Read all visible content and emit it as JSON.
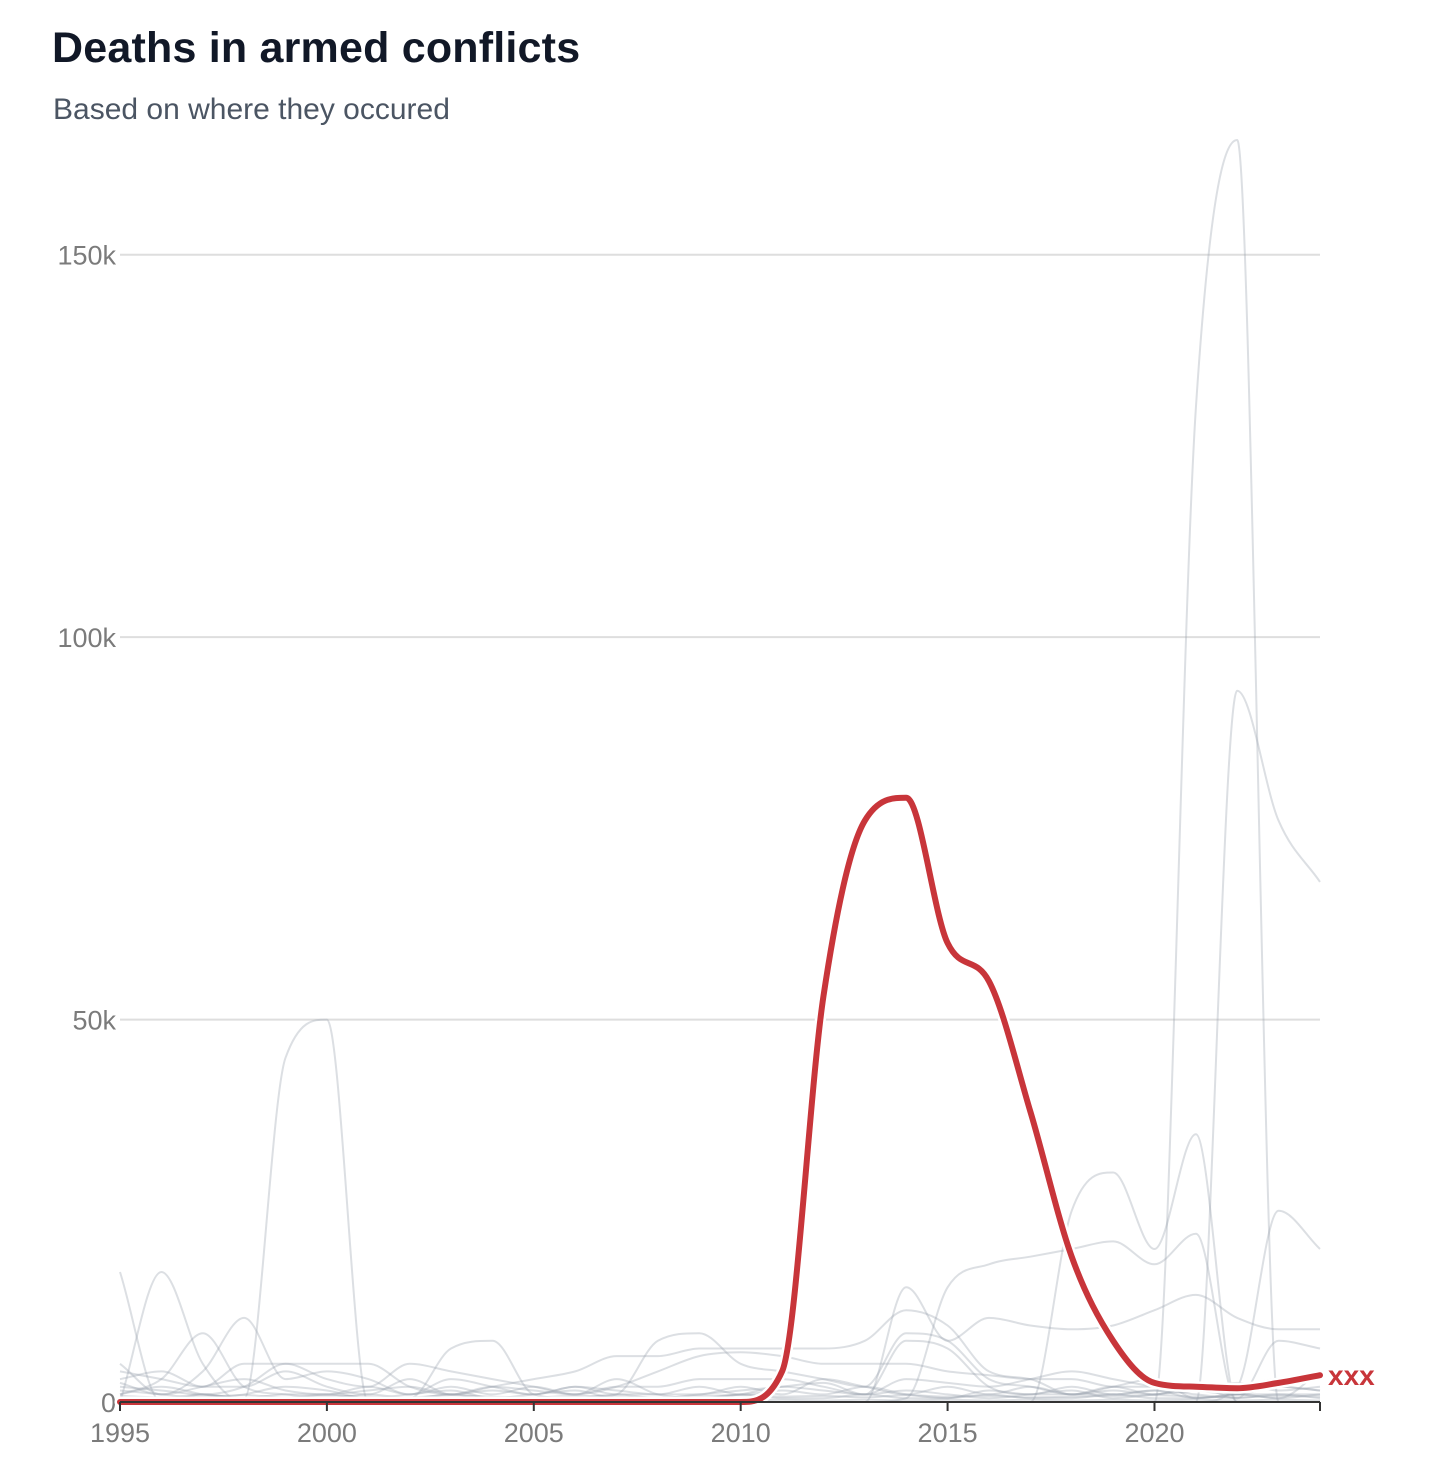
{
  "header": {
    "title": "Deaths in armed conflicts",
    "subtitle": "Based on where they occured"
  },
  "colors": {
    "highlight": "#c8353a",
    "background_series": "#9ca3af",
    "grid": "#dedede",
    "axis": "#333333"
  },
  "chart_data": {
    "type": "line",
    "title": "Deaths in armed conflicts",
    "subtitle": "Based on where they occured",
    "xlabel": "",
    "ylabel": "",
    "xlim": [
      1995,
      2024
    ],
    "ylim": [
      0,
      165000
    ],
    "x_ticks": [
      1995,
      2000,
      2005,
      2010,
      2015,
      2020
    ],
    "x_tick_labels": [
      "1995",
      "2000",
      "2005",
      "2010",
      "2015",
      "2020"
    ],
    "y_ticks": [
      0,
      50000,
      100000,
      150000
    ],
    "y_tick_labels": [
      "0",
      "50k",
      "100k",
      "150k"
    ],
    "grid": "horizontal",
    "highlight_label": "xxx",
    "x": [
      1995,
      1996,
      1997,
      1998,
      1999,
      2000,
      2001,
      2002,
      2003,
      2004,
      2005,
      2006,
      2007,
      2008,
      2009,
      2010,
      2011,
      2012,
      2013,
      2014,
      2015,
      2016,
      2017,
      2018,
      2019,
      2020,
      2021,
      2022,
      2023,
      2024
    ],
    "highlight_series": {
      "values": [
        0,
        0,
        0,
        0,
        0,
        0,
        0,
        0,
        0,
        0,
        0,
        0,
        0,
        0,
        0,
        0,
        4000,
        53000,
        76000,
        79000,
        60000,
        55000,
        38000,
        19000,
        8000,
        2500,
        2000,
        1800,
        2500,
        3500
      ],
      "color": "#c8353a"
    },
    "background_series": [
      {
        "values": [
          17000,
          0,
          1000,
          500,
          45000,
          50000,
          0,
          200,
          100,
          0,
          0,
          0,
          0,
          0,
          0,
          0,
          0,
          0,
          0,
          0,
          0,
          0,
          0,
          0,
          0,
          0,
          0,
          0,
          0,
          0
        ]
      },
      {
        "values": [
          0,
          0,
          0,
          0,
          0,
          0,
          0,
          0,
          0,
          0,
          0,
          0,
          0,
          0,
          0,
          0,
          0,
          0,
          0,
          0,
          0,
          0,
          0,
          0,
          0,
          0,
          130000,
          165000,
          0,
          0
        ]
      },
      {
        "values": [
          0,
          0,
          0,
          0,
          0,
          0,
          0,
          0,
          0,
          0,
          0,
          0,
          0,
          0,
          0,
          0,
          0,
          0,
          0,
          0,
          0,
          0,
          0,
          0,
          0,
          0,
          0,
          93000,
          76000,
          68000
        ]
      },
      {
        "values": [
          0,
          0,
          0,
          0,
          0,
          0,
          0,
          0,
          0,
          0,
          0,
          0,
          0,
          0,
          0,
          0,
          0,
          0,
          0,
          0,
          0,
          0,
          0,
          25000,
          30000,
          20000,
          35000,
          0,
          0,
          0
        ]
      },
      {
        "values": [
          0,
          0,
          0,
          0,
          0,
          0,
          0,
          0,
          0,
          0,
          0,
          0,
          0,
          0,
          0,
          0,
          0,
          0,
          0,
          0,
          0,
          0,
          0,
          0,
          0,
          0,
          0,
          2000,
          25000,
          20000
        ]
      },
      {
        "values": [
          0,
          0,
          0,
          0,
          0,
          0,
          0,
          0,
          0,
          0,
          0,
          0,
          0,
          0,
          0,
          0,
          0,
          0,
          0,
          500,
          15000,
          18000,
          19000,
          20000,
          21000,
          18000,
          22000,
          0,
          0,
          0
        ]
      },
      {
        "values": [
          0,
          17000,
          5000,
          0,
          0,
          0,
          0,
          0,
          0,
          0,
          0,
          0,
          0,
          0,
          0,
          0,
          0,
          0,
          0,
          15000,
          8000,
          11000,
          10000,
          9500,
          10000,
          12000,
          14000,
          11000,
          9500,
          9500
        ]
      },
      {
        "values": [
          1000,
          3000,
          9000,
          2000,
          1000,
          500,
          1000,
          500,
          7000,
          8000,
          1000,
          500,
          1000,
          8000,
          9000,
          5000,
          4000,
          3000,
          2000,
          9000,
          8000,
          3000,
          2000,
          1000,
          2000,
          3000,
          500,
          1000,
          500,
          4000
        ]
      },
      {
        "values": [
          5000,
          1000,
          4000,
          11000,
          3000,
          4000,
          3000,
          1000,
          2000,
          1000,
          2000,
          1000,
          3000,
          1000,
          500,
          1000,
          2000,
          1500,
          1000,
          8000,
          7000,
          2000,
          1000,
          1000,
          1500,
          1000,
          2000,
          500,
          8000,
          7000
        ]
      },
      {
        "values": [
          3000,
          4000,
          2000,
          5000,
          5000,
          5000,
          5000,
          2000,
          1000,
          2000,
          3000,
          4000,
          6000,
          6000,
          7000,
          7000,
          7000,
          7000,
          8000,
          12000,
          10000,
          4000,
          3000,
          1000,
          1000,
          1500,
          500,
          1000,
          2000,
          1500
        ]
      },
      {
        "values": [
          2000,
          1500,
          1000,
          2000,
          5000,
          3000,
          2000,
          5000,
          4000,
          3000,
          2000,
          1000,
          2000,
          4000,
          6000,
          6500,
          6000,
          5000,
          5000,
          5000,
          4000,
          3500,
          3000,
          3000,
          2000,
          2000,
          1500,
          1000,
          1000,
          1000
        ]
      },
      {
        "values": [
          4000,
          3000,
          2000,
          2000,
          4000,
          2000,
          1000,
          3000,
          1000,
          2000,
          1500,
          1000,
          2000,
          2000,
          3000,
          3000,
          3000,
          2000,
          1000,
          3000,
          2500,
          2000,
          3000,
          4000,
          3000,
          2000,
          1500,
          2000,
          3000,
          3000
        ]
      },
      {
        "values": [
          1000,
          2000,
          1000,
          500,
          1000,
          1000,
          2000,
          1000,
          3000,
          2000,
          1000,
          2000,
          1000,
          1000,
          1000,
          2000,
          1000,
          3000,
          2000,
          1000,
          2000,
          1000,
          2000,
          1000,
          2000,
          1000,
          2000,
          1000,
          2000,
          1500
        ]
      },
      {
        "values": [
          2500,
          1000,
          2000,
          3000,
          1500,
          1000,
          1500,
          2000,
          1000,
          1500,
          1000,
          2000,
          1500,
          1000,
          2000,
          1000,
          1500,
          1000,
          2000,
          1000,
          500,
          1500,
          1000,
          2000,
          1000,
          1500,
          1000,
          500,
          1000,
          500
        ]
      },
      {
        "values": [
          500,
          500,
          1000,
          500,
          500,
          1000,
          500,
          500,
          1000,
          500,
          500,
          500,
          1000,
          500,
          500,
          1000,
          500,
          500,
          1000,
          500,
          500,
          1000,
          500,
          500,
          1000,
          500,
          500,
          1000,
          500,
          1000
        ]
      },
      {
        "values": [
          1500,
          1000,
          500,
          1000,
          2000,
          1500,
          500,
          1000,
          1500,
          500,
          1000,
          1500,
          500,
          500,
          1000,
          1500,
          2000,
          2500,
          1000,
          1500,
          1000,
          500,
          1000,
          1500,
          500,
          1000,
          1500,
          2500,
          1500,
          2000
        ]
      },
      {
        "values": [
          300,
          200,
          300,
          200,
          300,
          200,
          300,
          200,
          300,
          200,
          300,
          200,
          300,
          200,
          300,
          200,
          300,
          200,
          300,
          200,
          300,
          200,
          300,
          200,
          300,
          200,
          300,
          200,
          300,
          200
        ]
      },
      {
        "values": [
          800,
          600,
          700,
          900,
          600,
          800,
          700,
          600,
          900,
          700,
          600,
          800,
          700,
          600,
          800,
          900,
          700,
          800,
          600,
          900,
          700,
          800,
          600,
          700,
          800,
          900,
          700,
          600,
          800,
          700
        ]
      }
    ]
  }
}
